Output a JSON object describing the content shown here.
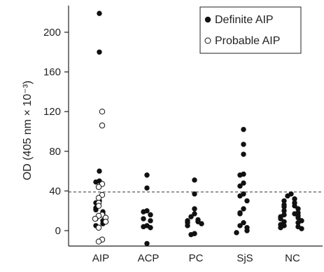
{
  "chart_data": {
    "type": "scatter",
    "title": "",
    "xlabel": "",
    "ylabel": "OD (405 nm × 10⁻³)",
    "ylim": [
      -15,
      225
    ],
    "yticks": [
      0,
      40,
      80,
      120,
      160,
      200
    ],
    "categories": [
      "AIP",
      "ACP",
      "PC",
      "SjS",
      "NC"
    ],
    "cutoff": 39,
    "grid": false,
    "legend_position": "top-right",
    "series": [
      {
        "name": "Definite AIP",
        "marker": "filled",
        "points": [
          {
            "category": "AIP",
            "values": [
              219,
              180,
              60,
              50,
              49,
              30,
              28,
              23,
              21,
              19,
              17,
              12,
              10,
              7,
              5
            ]
          },
          {
            "category": "ACP",
            "values": [
              56,
              43,
              20,
              19,
              16,
              12,
              10,
              5,
              4,
              3,
              -13
            ]
          },
          {
            "category": "PC",
            "values": [
              51,
              37,
              22,
              17,
              14,
              11,
              10,
              9,
              8,
              7,
              5,
              -3,
              -4
            ]
          },
          {
            "category": "SjS",
            "values": [
              102,
              87,
              77,
              57,
              56,
              48,
              45,
              37,
              35,
              30,
              22,
              18,
              17,
              8,
              5,
              3,
              0,
              -2
            ]
          },
          {
            "category": "NC",
            "values": [
              37,
              35,
              32,
              30,
              28,
              26,
              25,
              24,
              22,
              20,
              18,
              17,
              16,
              15,
              14,
              13,
              12,
              10,
              9,
              8,
              6,
              5,
              4,
              3,
              2
            ]
          }
        ]
      },
      {
        "name": "Probable AIP",
        "marker": "open",
        "points": [
          {
            "category": "AIP",
            "values": [
              120,
              106,
              47,
              44,
              36,
              33,
              28,
              25,
              16,
              15,
              13,
              12,
              9,
              3,
              -9,
              -11
            ]
          }
        ]
      }
    ]
  },
  "legend": {
    "definite_label": "Definite AIP",
    "probable_label": "Probable AIP"
  }
}
